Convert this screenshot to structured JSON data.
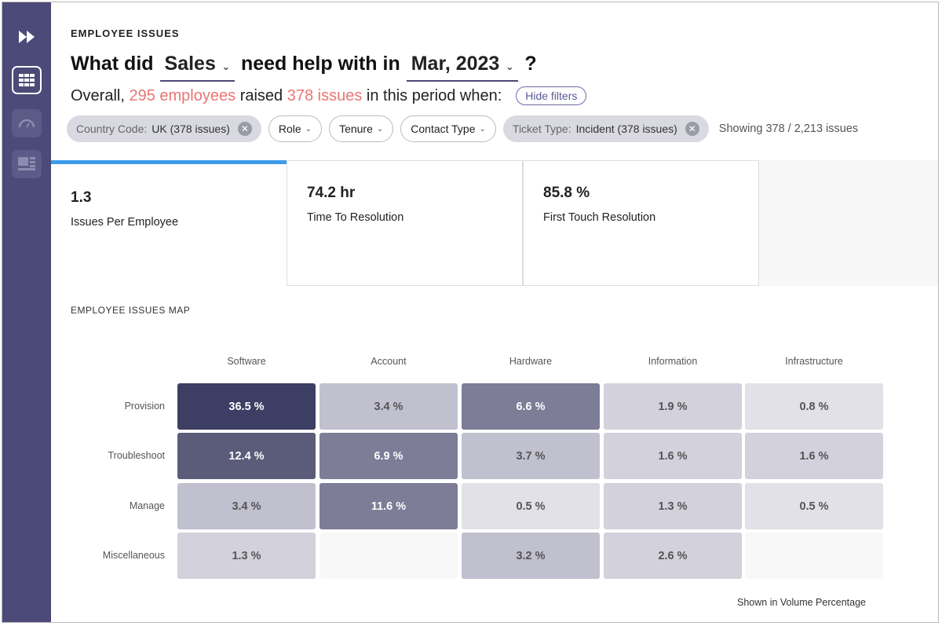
{
  "header": {
    "eyebrow": "EMPLOYEE ISSUES",
    "q_prefix": "What did",
    "department": "Sales",
    "q_middle": "need help with in",
    "period": "Mar, 2023",
    "q_suffix": "?"
  },
  "summary": {
    "prefix": "Overall,",
    "employees": "295 employees",
    "middle": "raised",
    "issues": "378 issues",
    "suffix": "in this period when:",
    "hide_filters": "Hide filters"
  },
  "filters": {
    "country": {
      "key": "Country Code:",
      "value": "UK (378 issues)"
    },
    "role": "Role",
    "tenure": "Tenure",
    "contact_type": "Contact Type",
    "ticket": {
      "key": "Ticket Type:",
      "value": "Incident (378 issues)"
    },
    "showing": "Showing 378 / 2,213 issues"
  },
  "kpis": [
    {
      "value": "1.3",
      "label": "Issues Per Employee"
    },
    {
      "value": "74.2 hr",
      "label": "Time To Resolution"
    },
    {
      "value": "85.8 %",
      "label": "First Touch Resolution"
    }
  ],
  "map": {
    "title": "EMPLOYEE ISSUES MAP",
    "footnote": "Shown in Volume Percentage"
  },
  "chart_data": {
    "type": "heatmap",
    "columns": [
      "Software",
      "Account",
      "Hardware",
      "Information",
      "Infrastructure"
    ],
    "rows": [
      "Provision",
      "Troubleshoot",
      "Manage",
      "Miscellaneous"
    ],
    "values": [
      [
        36.5,
        3.4,
        6.6,
        1.9,
        0.8
      ],
      [
        12.4,
        6.9,
        3.7,
        1.6,
        1.6
      ],
      [
        3.4,
        11.6,
        0.5,
        1.3,
        0.5
      ],
      [
        1.3,
        null,
        3.2,
        2.6,
        null
      ]
    ],
    "unit": "%",
    "color_scale": [
      "#f8f8f8",
      "#e2e1e7",
      "#d2d1dc",
      "#c1c0cf",
      "#7d7d98",
      "#5b5b7a",
      "#3d3e63"
    ]
  },
  "colors": {
    "sidebar": "#4b4a78",
    "accent": "#ec7474",
    "tab_active": "#3d9be9"
  }
}
